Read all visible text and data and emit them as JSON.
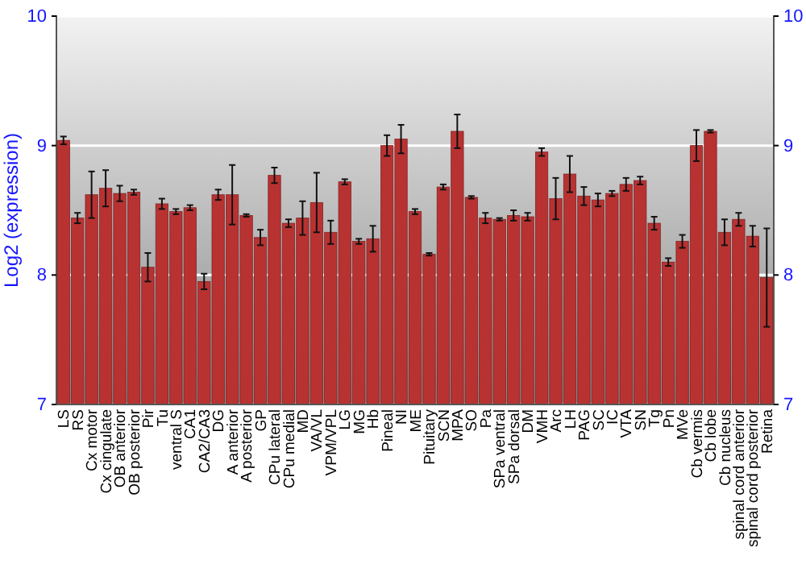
{
  "chart_data": {
    "type": "bar",
    "ylabel": "Log2 (expression)",
    "categories": [
      "LS",
      "RS",
      "Cx motor",
      "Cx cingulate",
      "OB anterior",
      "OB posterior",
      "Pir",
      "Tu",
      "ventral S",
      "CA1",
      "CA2/CA3",
      "DG",
      "A anterior",
      "A posterior",
      "GP",
      "CPu lateral",
      "CPu medial",
      "MD",
      "VA/VL",
      "VPM/VPL",
      "LG",
      "MG",
      "Hb",
      "Pineal",
      "NI",
      "ME",
      "Pituitary",
      "SCN",
      "MPA",
      "SO",
      "Pa",
      "SPa ventral",
      "SPa dorsal",
      "DM",
      "VMH",
      "Arc",
      "LH",
      "PAG",
      "SC",
      "IC",
      "VTA",
      "SN",
      "Tg",
      "Pn",
      "MVe",
      "Cb vermis",
      "Cb lobe",
      "Cb nucleus",
      "spinal cord anterior",
      "spinal cord posterior",
      "Retina"
    ],
    "series": [
      {
        "color": "#b83232",
        "values": [
          9.04,
          8.44,
          8.62,
          8.67,
          8.63,
          8.64,
          8.06,
          8.55,
          8.49,
          8.52,
          7.95,
          8.62,
          8.62,
          8.46,
          8.29,
          8.77,
          8.4,
          8.44,
          8.56,
          8.33,
          8.72,
          8.26,
          8.28,
          9.0,
          9.05,
          8.49,
          8.16,
          8.68,
          9.11,
          8.6,
          8.44,
          8.43,
          8.46,
          8.45,
          8.95,
          8.59,
          8.78,
          8.61,
          8.58,
          8.63,
          8.7,
          8.73,
          8.4,
          8.1,
          8.26,
          9.0,
          9.11,
          8.33,
          8.43,
          8.3,
          7.98
        ],
        "errors": [
          0.03,
          0.04,
          0.18,
          0.14,
          0.06,
          0.02,
          0.11,
          0.04,
          0.02,
          0.02,
          0.06,
          0.04,
          0.23,
          0.01,
          0.06,
          0.06,
          0.03,
          0.13,
          0.23,
          0.09,
          0.02,
          0.02,
          0.1,
          0.08,
          0.11,
          0.02,
          0.01,
          0.02,
          0.13,
          0.01,
          0.04,
          0.01,
          0.04,
          0.03,
          0.03,
          0.16,
          0.14,
          0.07,
          0.05,
          0.02,
          0.05,
          0.03,
          0.05,
          0.03,
          0.05,
          0.12,
          0.01,
          0.1,
          0.05,
          0.08,
          0.38
        ]
      }
    ],
    "ylim": [
      7,
      10
    ],
    "yticks": [
      7,
      8,
      9,
      10
    ],
    "y2lim": [
      7,
      10
    ],
    "y2ticks": [
      7,
      8,
      9,
      10
    ],
    "grid": "y"
  }
}
